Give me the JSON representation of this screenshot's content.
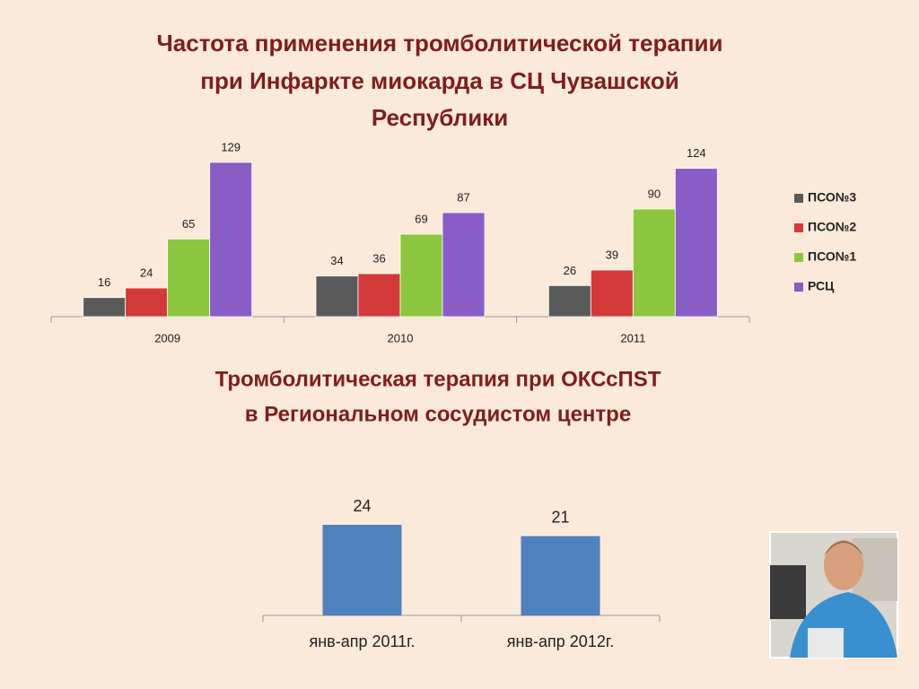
{
  "chart_data": [
    {
      "type": "bar",
      "title": [
        "Частота применения тромболитической терапии",
        "при Инфаркте миокарда в СЦ Чувашской",
        "Республики"
      ],
      "categories": [
        "2009",
        "2010",
        "2011"
      ],
      "series": [
        {
          "name": "ПСО№3",
          "color": "#5a5a5a",
          "values": [
            16,
            34,
            26
          ]
        },
        {
          "name": "ПСО№2",
          "color": "#d23a3a",
          "values": [
            24,
            36,
            39
          ]
        },
        {
          "name": "ПСО№1",
          "color": "#8cc63e",
          "values": [
            65,
            69,
            90
          ]
        },
        {
          "name": "РСЦ",
          "color": "#8a5cc6",
          "values": [
            129,
            87,
            124
          ]
        }
      ],
      "legend": "right"
    },
    {
      "type": "bar",
      "title": [
        "Тромболитическая терапия при ОКСсПST",
        "в Региональном сосудистом центре"
      ],
      "categories": [
        "янв-апр 2011г.",
        "янв-апр 2012г."
      ],
      "values": [
        24,
        21
      ],
      "color": "#4f81bd"
    }
  ]
}
